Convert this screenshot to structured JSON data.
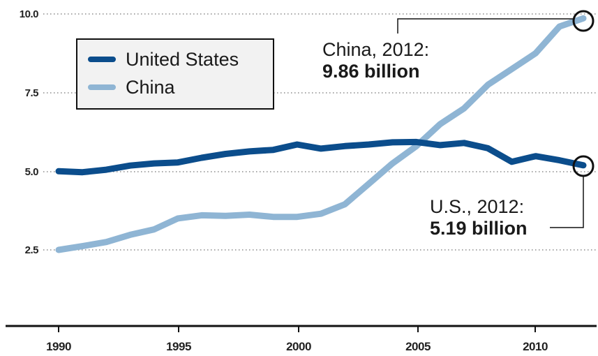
{
  "chart_data": {
    "type": "line",
    "title": "",
    "xlabel": "",
    "ylabel": "",
    "xlim": [
      1990,
      2012
    ],
    "ylim": [
      2.5,
      10.0
    ],
    "y_ticks": [
      "10.0",
      "7.5",
      "5.0",
      "2.5"
    ],
    "y_tick_values": [
      10.0,
      7.5,
      5.0,
      2.5
    ],
    "x_ticks": [
      "1990",
      "1995",
      "2000",
      "2005",
      "2010"
    ],
    "x_tick_values": [
      1990,
      1995,
      2000,
      2005,
      2010
    ],
    "grid": "horizontal dotted",
    "legend_position": "top-left",
    "x": [
      1990,
      1991,
      1992,
      1993,
      1994,
      1995,
      1996,
      1997,
      1998,
      1999,
      2000,
      2001,
      2002,
      2003,
      2004,
      2005,
      2006,
      2007,
      2008,
      2009,
      2010,
      2011,
      2012
    ],
    "series": [
      {
        "name": "United States",
        "color": "#0b4d8c",
        "values": [
          5.0,
          4.97,
          5.05,
          5.18,
          5.25,
          5.28,
          5.43,
          5.55,
          5.63,
          5.68,
          5.85,
          5.72,
          5.8,
          5.85,
          5.92,
          5.93,
          5.83,
          5.9,
          5.73,
          5.3,
          5.48,
          5.35,
          5.19
        ]
      },
      {
        "name": "China",
        "color": "#8fb5d4",
        "values": [
          2.5,
          2.62,
          2.75,
          2.98,
          3.15,
          3.5,
          3.6,
          3.58,
          3.62,
          3.55,
          3.55,
          3.65,
          3.95,
          4.6,
          5.25,
          5.8,
          6.5,
          7.0,
          7.75,
          8.25,
          8.75,
          9.6,
          9.86
        ]
      }
    ],
    "annotations": [
      {
        "target": "China",
        "year": 2012,
        "label": "China, 2012:",
        "value_text": "9.86 billion",
        "value": 9.86
      },
      {
        "target": "United States",
        "year": 2012,
        "label": "U.S., 2012:",
        "value_text": "5.19 billion",
        "value": 5.19
      }
    ]
  },
  "colors": {
    "us_line": "#0b4d8c",
    "china_line": "#8fb5d4",
    "axis": "#111111",
    "grid": "#8a8a8a",
    "legend_bg": "#f2f2f2"
  }
}
